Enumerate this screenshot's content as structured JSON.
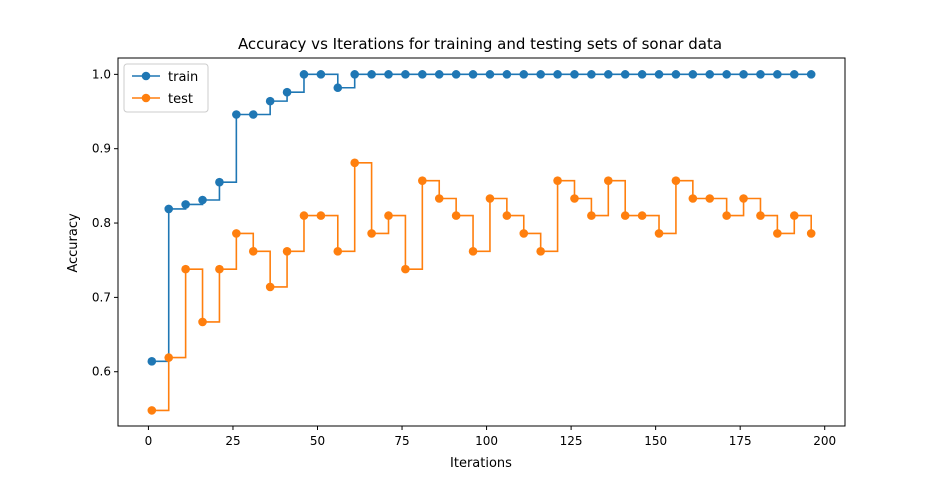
{
  "chart_data": {
    "type": "line",
    "step": "post",
    "title": "Accuracy vs Iterations for training and testing sets of sonar data",
    "xlabel": "Iterations",
    "ylabel": "Accuracy",
    "xlim": [
      -9,
      206
    ],
    "ylim": [
      0.527,
      1.022
    ],
    "xticks": [
      0,
      25,
      50,
      75,
      100,
      125,
      150,
      175,
      200
    ],
    "yticks": [
      0.6,
      0.7,
      0.8,
      0.9,
      1.0
    ],
    "xtick_labels": [
      "0",
      "25",
      "50",
      "75",
      "100",
      "125",
      "150",
      "175",
      "200"
    ],
    "ytick_labels": [
      "0.6",
      "0.7",
      "0.8",
      "0.9",
      "1.0"
    ],
    "legend_position": "top-left",
    "x": [
      1,
      6,
      11,
      16,
      21,
      26,
      31,
      36,
      41,
      46,
      51,
      56,
      61,
      66,
      71,
      76,
      81,
      86,
      91,
      96,
      101,
      106,
      111,
      116,
      121,
      126,
      131,
      136,
      141,
      146,
      151,
      156,
      161,
      166,
      171,
      176,
      181,
      186,
      191,
      196
    ],
    "series": [
      {
        "name": "train",
        "color": "#1f77b4",
        "values": [
          0.614,
          0.819,
          0.825,
          0.831,
          0.855,
          0.946,
          0.946,
          0.964,
          0.976,
          1.0,
          1.0,
          0.982,
          1.0,
          1.0,
          1.0,
          1.0,
          1.0,
          1.0,
          1.0,
          1.0,
          1.0,
          1.0,
          1.0,
          1.0,
          1.0,
          1.0,
          1.0,
          1.0,
          1.0,
          1.0,
          1.0,
          1.0,
          1.0,
          1.0,
          1.0,
          1.0,
          1.0,
          1.0,
          1.0,
          1.0
        ]
      },
      {
        "name": "test",
        "color": "#ff7f0e",
        "values": [
          0.548,
          0.619,
          0.738,
          0.667,
          0.738,
          0.786,
          0.762,
          0.714,
          0.762,
          0.81,
          0.81,
          0.762,
          0.881,
          0.786,
          0.81,
          0.738,
          0.857,
          0.833,
          0.81,
          0.762,
          0.833,
          0.81,
          0.786,
          0.762,
          0.857,
          0.833,
          0.81,
          0.857,
          0.81,
          0.81,
          0.786,
          0.857,
          0.833,
          0.833,
          0.81,
          0.833,
          0.81,
          0.786,
          0.81,
          0.786
        ]
      }
    ],
    "grid": false
  }
}
